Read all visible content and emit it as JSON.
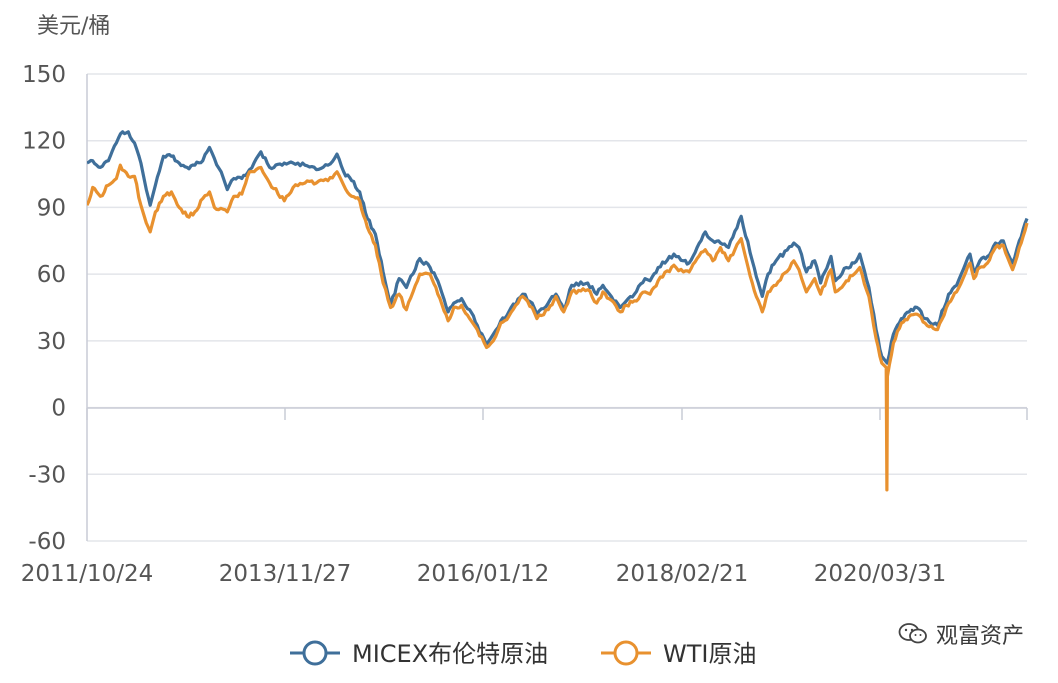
{
  "chart_data": {
    "type": "line",
    "ylabel": "美元/桶",
    "ylim": [
      -60,
      150
    ],
    "yticks": [
      150,
      120,
      90,
      60,
      30,
      0,
      -30,
      -60
    ],
    "xtick_labels": [
      "2011/10/24",
      "2013/11/27",
      "2016/01/12",
      "2018/02/21",
      "2020/03/31"
    ],
    "x_range": [
      "2011-10-24",
      "2021-10-15"
    ],
    "legend_position": "bottom",
    "series": [
      {
        "name": "MICEX布伦特原油",
        "color": "#3f6f9a",
        "points": [
          [
            "2011-10-24",
            110
          ],
          [
            "2011-11-15",
            111
          ],
          [
            "2011-12-15",
            108
          ],
          [
            "2012-01-15",
            111
          ],
          [
            "2012-02-15",
            119
          ],
          [
            "2012-03-10",
            124
          ],
          [
            "2012-04-01",
            124
          ],
          [
            "2012-04-25",
            119
          ],
          [
            "2012-05-20",
            110
          ],
          [
            "2012-06-10",
            98
          ],
          [
            "2012-06-25",
            91
          ],
          [
            "2012-07-15",
            100
          ],
          [
            "2012-08-15",
            113
          ],
          [
            "2012-09-15",
            113
          ],
          [
            "2012-10-15",
            110
          ],
          [
            "2012-11-15",
            108
          ],
          [
            "2012-12-15",
            109
          ],
          [
            "2013-01-15",
            111
          ],
          [
            "2013-02-10",
            117
          ],
          [
            "2013-03-01",
            112
          ],
          [
            "2013-04-05",
            103
          ],
          [
            "2013-04-20",
            98
          ],
          [
            "2013-05-15",
            103
          ],
          [
            "2013-06-15",
            103
          ],
          [
            "2013-07-15",
            107
          ],
          [
            "2013-08-28",
            115
          ],
          [
            "2013-10-01",
            108
          ],
          [
            "2013-11-27",
            110
          ],
          [
            "2013-12-31",
            110
          ],
          [
            "2014-02-15",
            109
          ],
          [
            "2014-03-31",
            107
          ],
          [
            "2014-05-15",
            109
          ],
          [
            "2014-06-19",
            114
          ],
          [
            "2014-07-15",
            106
          ],
          [
            "2014-08-15",
            102
          ],
          [
            "2014-09-15",
            97
          ],
          [
            "2014-10-15",
            85
          ],
          [
            "2014-11-15",
            78
          ],
          [
            "2014-12-15",
            61
          ],
          [
            "2015-01-13",
            46
          ],
          [
            "2015-02-15",
            58
          ],
          [
            "2015-03-15",
            54
          ],
          [
            "2015-05-06",
            67
          ],
          [
            "2015-06-15",
            63
          ],
          [
            "2015-07-15",
            57
          ],
          [
            "2015-08-24",
            43
          ],
          [
            "2015-09-15",
            47
          ],
          [
            "2015-10-15",
            49
          ],
          [
            "2015-11-15",
            44
          ],
          [
            "2015-12-15",
            37
          ],
          [
            "2016-01-20",
            28
          ],
          [
            "2016-02-15",
            33
          ],
          [
            "2016-03-15",
            39
          ],
          [
            "2016-04-15",
            43
          ],
          [
            "2016-06-08",
            51
          ],
          [
            "2016-07-15",
            47
          ],
          [
            "2016-08-02",
            42
          ],
          [
            "2016-09-15",
            47
          ],
          [
            "2016-10-15",
            51
          ],
          [
            "2016-11-14",
            44
          ],
          [
            "2016-12-15",
            55
          ],
          [
            "2017-02-15",
            56
          ],
          [
            "2017-03-22",
            51
          ],
          [
            "2017-04-15",
            55
          ],
          [
            "2017-06-21",
            45
          ],
          [
            "2017-07-15",
            48
          ],
          [
            "2017-08-15",
            51
          ],
          [
            "2017-09-25",
            58
          ],
          [
            "2017-10-15",
            57
          ],
          [
            "2017-11-15",
            63
          ],
          [
            "2018-01-15",
            69
          ],
          [
            "2018-02-21",
            66
          ],
          [
            "2018-03-15",
            65
          ],
          [
            "2018-04-15",
            72
          ],
          [
            "2018-05-17",
            79
          ],
          [
            "2018-06-15",
            75
          ],
          [
            "2018-07-15",
            74
          ],
          [
            "2018-08-15",
            72
          ],
          [
            "2018-10-03",
            86
          ],
          [
            "2018-11-15",
            66
          ],
          [
            "2018-12-24",
            50
          ],
          [
            "2019-01-15",
            60
          ],
          [
            "2019-02-15",
            66
          ],
          [
            "2019-04-25",
            74
          ],
          [
            "2019-05-15",
            72
          ],
          [
            "2019-06-13",
            61
          ],
          [
            "2019-07-15",
            66
          ],
          [
            "2019-08-07",
            56
          ],
          [
            "2019-09-16",
            68
          ],
          [
            "2019-10-03",
            57
          ],
          [
            "2019-11-15",
            63
          ],
          [
            "2019-12-15",
            65
          ],
          [
            "2020-01-06",
            69
          ],
          [
            "2020-02-10",
            54
          ],
          [
            "2020-03-09",
            35
          ],
          [
            "2020-03-31",
            23
          ],
          [
            "2020-04-21",
            20
          ],
          [
            "2020-05-15",
            33
          ],
          [
            "2020-06-15",
            40
          ],
          [
            "2020-07-15",
            43
          ],
          [
            "2020-08-15",
            45
          ],
          [
            "2020-09-15",
            40
          ],
          [
            "2020-11-02",
            37
          ],
          [
            "2020-12-15",
            51
          ],
          [
            "2021-01-15",
            55
          ],
          [
            "2021-03-08",
            69
          ],
          [
            "2021-03-23",
            61
          ],
          [
            "2021-04-15",
            66
          ],
          [
            "2021-05-15",
            68
          ],
          [
            "2021-06-15",
            74
          ],
          [
            "2021-07-15",
            75
          ],
          [
            "2021-08-20",
            65
          ],
          [
            "2021-09-15",
            75
          ],
          [
            "2021-10-15",
            85
          ]
        ]
      },
      {
        "name": "WTI原油",
        "color": "#e8912f",
        "points": [
          [
            "2011-10-24",
            91
          ],
          [
            "2011-11-15",
            99
          ],
          [
            "2011-12-15",
            95
          ],
          [
            "2012-01-15",
            100
          ],
          [
            "2012-02-15",
            103
          ],
          [
            "2012-03-01",
            109
          ],
          [
            "2012-04-01",
            104
          ],
          [
            "2012-04-25",
            104
          ],
          [
            "2012-05-20",
            91
          ],
          [
            "2012-06-10",
            83
          ],
          [
            "2012-06-25",
            79
          ],
          [
            "2012-07-15",
            88
          ],
          [
            "2012-08-15",
            95
          ],
          [
            "2012-09-15",
            97
          ],
          [
            "2012-10-15",
            90
          ],
          [
            "2012-11-15",
            86
          ],
          [
            "2012-12-15",
            88
          ],
          [
            "2013-01-15",
            94
          ],
          [
            "2013-02-10",
            97
          ],
          [
            "2013-03-01",
            90
          ],
          [
            "2013-04-20",
            88
          ],
          [
            "2013-05-15",
            95
          ],
          [
            "2013-06-15",
            96
          ],
          [
            "2013-07-15",
            106
          ],
          [
            "2013-08-28",
            108
          ],
          [
            "2013-10-01",
            101
          ],
          [
            "2013-11-27",
            93
          ],
          [
            "2013-12-31",
            99
          ],
          [
            "2014-02-15",
            101
          ],
          [
            "2014-03-31",
            101
          ],
          [
            "2014-05-15",
            102
          ],
          [
            "2014-06-19",
            106
          ],
          [
            "2014-07-15",
            100
          ],
          [
            "2014-08-15",
            95
          ],
          [
            "2014-09-15",
            93
          ],
          [
            "2014-10-15",
            81
          ],
          [
            "2014-11-15",
            73
          ],
          [
            "2014-12-15",
            56
          ],
          [
            "2015-01-13",
            45
          ],
          [
            "2015-02-15",
            51
          ],
          [
            "2015-03-15",
            44
          ],
          [
            "2015-05-06",
            60
          ],
          [
            "2015-06-15",
            60
          ],
          [
            "2015-07-15",
            51
          ],
          [
            "2015-08-24",
            39
          ],
          [
            "2015-09-15",
            45
          ],
          [
            "2015-10-15",
            46
          ],
          [
            "2015-11-15",
            40
          ],
          [
            "2015-12-15",
            35
          ],
          [
            "2016-01-20",
            27
          ],
          [
            "2016-02-15",
            30
          ],
          [
            "2016-03-15",
            38
          ],
          [
            "2016-04-15",
            41
          ],
          [
            "2016-06-08",
            50
          ],
          [
            "2016-07-15",
            45
          ],
          [
            "2016-08-02",
            40
          ],
          [
            "2016-09-15",
            44
          ],
          [
            "2016-10-15",
            50
          ],
          [
            "2016-11-14",
            43
          ],
          [
            "2016-12-15",
            52
          ],
          [
            "2017-02-15",
            53
          ],
          [
            "2017-03-22",
            47
          ],
          [
            "2017-04-15",
            52
          ],
          [
            "2017-06-21",
            43
          ],
          [
            "2017-07-15",
            46
          ],
          [
            "2017-08-15",
            48
          ],
          [
            "2017-09-25",
            52
          ],
          [
            "2017-10-15",
            51
          ],
          [
            "2017-11-15",
            57
          ],
          [
            "2018-01-15",
            64
          ],
          [
            "2018-02-21",
            61
          ],
          [
            "2018-03-15",
            61
          ],
          [
            "2018-04-15",
            67
          ],
          [
            "2018-05-17",
            71
          ],
          [
            "2018-06-15",
            66
          ],
          [
            "2018-07-15",
            72
          ],
          [
            "2018-08-15",
            66
          ],
          [
            "2018-10-03",
            76
          ],
          [
            "2018-11-15",
            56
          ],
          [
            "2018-12-24",
            43
          ],
          [
            "2019-01-15",
            52
          ],
          [
            "2019-02-15",
            55
          ],
          [
            "2019-04-25",
            66
          ],
          [
            "2019-05-15",
            62
          ],
          [
            "2019-06-13",
            52
          ],
          [
            "2019-07-15",
            58
          ],
          [
            "2019-08-07",
            51
          ],
          [
            "2019-09-16",
            62
          ],
          [
            "2019-10-03",
            52
          ],
          [
            "2019-11-15",
            57
          ],
          [
            "2019-12-15",
            60
          ],
          [
            "2020-01-06",
            63
          ],
          [
            "2020-02-10",
            50
          ],
          [
            "2020-03-09",
            31
          ],
          [
            "2020-03-31",
            20
          ],
          [
            "2020-04-17",
            18
          ],
          [
            "2020-04-20",
            -37
          ],
          [
            "2020-04-22",
            14
          ],
          [
            "2020-05-15",
            29
          ],
          [
            "2020-06-15",
            38
          ],
          [
            "2020-07-15",
            41
          ],
          [
            "2020-08-15",
            42
          ],
          [
            "2020-09-15",
            38
          ],
          [
            "2020-11-02",
            35
          ],
          [
            "2020-12-15",
            47
          ],
          [
            "2021-01-15",
            52
          ],
          [
            "2021-03-08",
            65
          ],
          [
            "2021-03-23",
            58
          ],
          [
            "2021-04-15",
            63
          ],
          [
            "2021-05-15",
            65
          ],
          [
            "2021-06-15",
            72
          ],
          [
            "2021-07-15",
            73
          ],
          [
            "2021-08-20",
            62
          ],
          [
            "2021-09-15",
            72
          ],
          [
            "2021-10-15",
            83
          ]
        ]
      }
    ]
  },
  "watermark": {
    "text": "观富资产",
    "icon": "wechat-icon"
  }
}
